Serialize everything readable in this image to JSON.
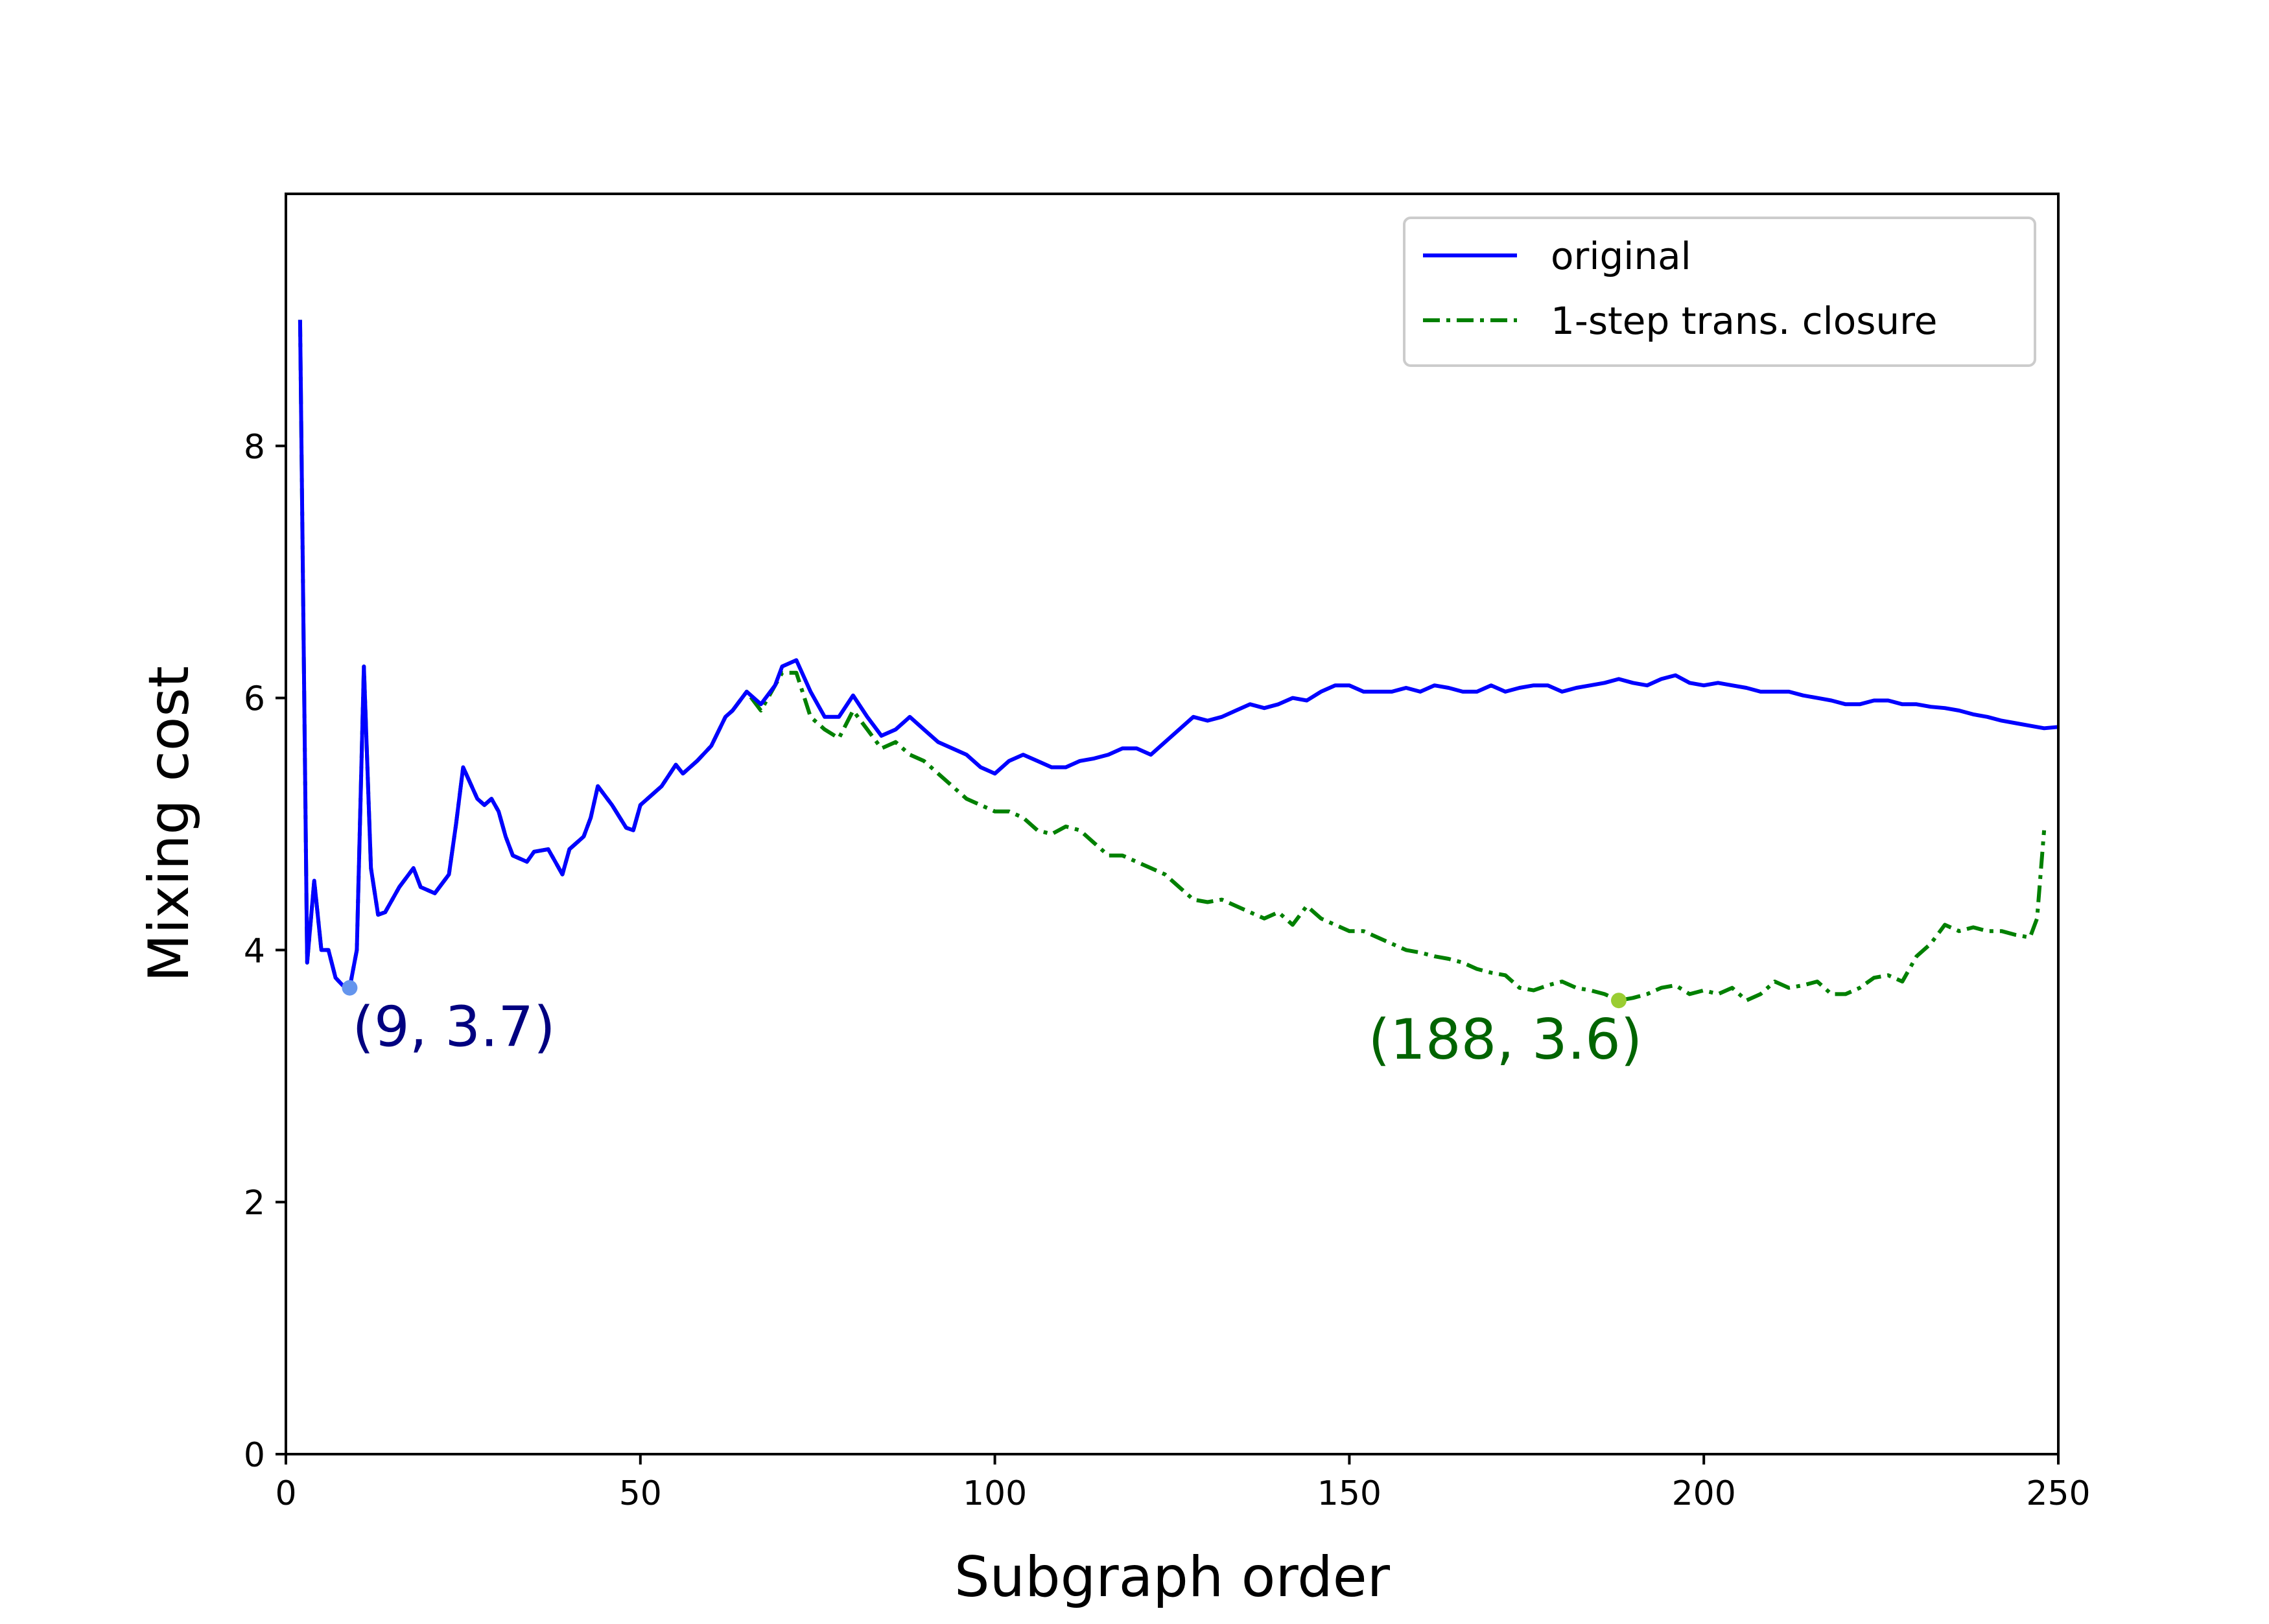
{
  "chart_data": {
    "type": "line",
    "title": "",
    "xlabel": "Subgraph order",
    "ylabel": "Mixing cost",
    "xlim": [
      0,
      250
    ],
    "ylim": [
      0,
      10
    ],
    "xticks": [
      0,
      50,
      100,
      150,
      200,
      250
    ],
    "xtick_labels": [
      "0",
      "50",
      "100",
      "150",
      "200",
      "250"
    ],
    "yticks": [
      0,
      2,
      4,
      6,
      8
    ],
    "ytick_labels": [
      "0",
      "2",
      "4",
      "6",
      "8"
    ],
    "grid": false,
    "legend_position": "top-right",
    "series": [
      {
        "name": "original",
        "color": "#0000ff",
        "style": "solid",
        "x": [
          2,
          3,
          4,
          5,
          6,
          7,
          8,
          9,
          10,
          11,
          12,
          13,
          14,
          16,
          18,
          19,
          21,
          23,
          24,
          25,
          27,
          28,
          29,
          30,
          31,
          32,
          34,
          35,
          37,
          38,
          39,
          40,
          42,
          43,
          44,
          46,
          48,
          49,
          50,
          51,
          52,
          53,
          55,
          56,
          58,
          60,
          62,
          63,
          65,
          67,
          69,
          70,
          72,
          74,
          76,
          78,
          80,
          82,
          84,
          86,
          88,
          90,
          92,
          94,
          96,
          98,
          100,
          102,
          104,
          106,
          108,
          110,
          112,
          114,
          116,
          118,
          120,
          122,
          124,
          126,
          128,
          130,
          132,
          134,
          136,
          138,
          140,
          142,
          144,
          146,
          148,
          150,
          152,
          154,
          156,
          158,
          160,
          162,
          164,
          166,
          168,
          170,
          172,
          174,
          176,
          178,
          180,
          182,
          184,
          186,
          188,
          190,
          192,
          194,
          196,
          198,
          200,
          202,
          204,
          206,
          208,
          210,
          212,
          214,
          216,
          218,
          220,
          222,
          224,
          226,
          228,
          230,
          232,
          234,
          236,
          238,
          240,
          242,
          244,
          246,
          248,
          250
        ],
        "y": [
          9.0,
          3.9,
          4.55,
          4.0,
          4.0,
          3.78,
          3.72,
          3.7,
          4.0,
          6.25,
          4.65,
          4.28,
          4.3,
          4.5,
          4.65,
          4.5,
          4.45,
          4.6,
          5.0,
          5.45,
          5.2,
          5.15,
          5.2,
          5.1,
          4.9,
          4.75,
          4.7,
          4.78,
          4.8,
          4.7,
          4.6,
          4.8,
          4.9,
          5.05,
          5.3,
          5.15,
          4.97,
          4.95,
          5.15,
          5.2,
          5.25,
          5.3,
          5.47,
          5.4,
          5.5,
          5.62,
          5.85,
          5.9,
          6.05,
          5.95,
          6.1,
          6.25,
          6.3,
          6.05,
          5.85,
          5.85,
          6.02,
          5.85,
          5.7,
          5.75,
          5.85,
          5.75,
          5.65,
          5.6,
          5.55,
          5.45,
          5.4,
          5.5,
          5.55,
          5.5,
          5.45,
          5.45,
          5.5,
          5.52,
          5.55,
          5.6,
          5.6,
          5.55,
          5.65,
          5.75,
          5.85,
          5.82,
          5.85,
          5.9,
          5.95,
          5.92,
          5.95,
          6.0,
          5.98,
          6.05,
          6.1,
          6.1,
          6.05,
          6.05,
          6.05,
          6.08,
          6.05,
          6.1,
          6.08,
          6.05,
          6.05,
          6.1,
          6.05,
          6.08,
          6.1,
          6.1,
          6.05,
          6.08,
          6.1,
          6.12,
          6.15,
          6.12,
          6.1,
          6.15,
          6.18,
          6.12,
          6.1,
          6.12,
          6.1,
          6.08,
          6.05,
          6.05,
          6.05,
          6.02,
          6.0,
          5.98,
          5.95,
          5.95,
          5.98,
          5.98,
          5.95,
          5.95,
          5.93,
          5.92,
          5.9,
          5.87,
          5.85,
          5.82,
          5.8,
          5.78,
          5.76,
          5.77
        ],
        "marker": {
          "x": 9,
          "y": 3.7,
          "label": "(9, 3.7)",
          "marker_color": "#6495ed",
          "label_color": "#000080"
        }
      },
      {
        "name": "1-step trans. closure",
        "color": "#008000",
        "style": "dashdot",
        "x": [
          2,
          3,
          4,
          5,
          6,
          7,
          8,
          9,
          10,
          11,
          12,
          13,
          14,
          16,
          18,
          19,
          21,
          23,
          24,
          25,
          27,
          28,
          29,
          30,
          31,
          32,
          34,
          35,
          37,
          38,
          39,
          40,
          42,
          43,
          44,
          46,
          48,
          49,
          50,
          51,
          52,
          53,
          55,
          56,
          58,
          60,
          62,
          63,
          65,
          67,
          69,
          70,
          72,
          74,
          76,
          78,
          80,
          82,
          84,
          86,
          88,
          90,
          92,
          94,
          96,
          98,
          100,
          102,
          104,
          106,
          108,
          110,
          112,
          114,
          116,
          118,
          120,
          122,
          124,
          126,
          128,
          130,
          132,
          134,
          136,
          138,
          140,
          142,
          144,
          146,
          148,
          150,
          152,
          154,
          156,
          158,
          160,
          162,
          164,
          166,
          168,
          170,
          172,
          174,
          176,
          178,
          180,
          182,
          184,
          186,
          188,
          190,
          192,
          194,
          196,
          198,
          200,
          202,
          204,
          206,
          208,
          210,
          212,
          214,
          216,
          218,
          220,
          222,
          224,
          226,
          228,
          230,
          232,
          234,
          236,
          238,
          240,
          242,
          244,
          246,
          247,
          248
        ],
        "y": [
          9.0,
          3.9,
          4.55,
          4.0,
          4.0,
          3.78,
          3.72,
          3.7,
          4.0,
          6.25,
          4.65,
          4.28,
          4.3,
          4.5,
          4.65,
          4.5,
          4.45,
          4.6,
          5.0,
          5.45,
          5.2,
          5.15,
          5.2,
          5.1,
          4.9,
          4.75,
          4.7,
          4.78,
          4.8,
          4.7,
          4.6,
          4.8,
          4.9,
          5.05,
          5.3,
          5.15,
          4.97,
          4.95,
          5.15,
          5.2,
          5.25,
          5.3,
          5.47,
          5.4,
          5.5,
          5.62,
          5.85,
          5.9,
          6.05,
          5.9,
          6.1,
          6.2,
          6.2,
          5.85,
          5.75,
          5.68,
          5.9,
          5.75,
          5.6,
          5.65,
          5.55,
          5.5,
          5.4,
          5.3,
          5.2,
          5.15,
          5.1,
          5.1,
          5.05,
          4.95,
          4.92,
          4.98,
          4.95,
          4.85,
          4.75,
          4.75,
          4.7,
          4.65,
          4.6,
          4.5,
          4.4,
          4.38,
          4.4,
          4.35,
          4.3,
          4.25,
          4.3,
          4.2,
          4.35,
          4.25,
          4.2,
          4.15,
          4.15,
          4.1,
          4.05,
          4.0,
          3.98,
          3.95,
          3.93,
          3.9,
          3.85,
          3.82,
          3.8,
          3.7,
          3.68,
          3.72,
          3.75,
          3.7,
          3.68,
          3.65,
          3.6,
          3.62,
          3.65,
          3.7,
          3.72,
          3.65,
          3.68,
          3.65,
          3.7,
          3.6,
          3.65,
          3.75,
          3.7,
          3.72,
          3.75,
          3.65,
          3.65,
          3.7,
          3.78,
          3.8,
          3.75,
          3.95,
          4.05,
          4.2,
          4.15,
          4.18,
          4.15,
          4.15,
          4.12,
          4.1,
          4.25,
          4.95
        ],
        "marker": {
          "x": 188,
          "y": 3.6,
          "label": "(188, 3.6)",
          "marker_color": "#9acd32",
          "label_color": "#006400"
        }
      }
    ]
  }
}
